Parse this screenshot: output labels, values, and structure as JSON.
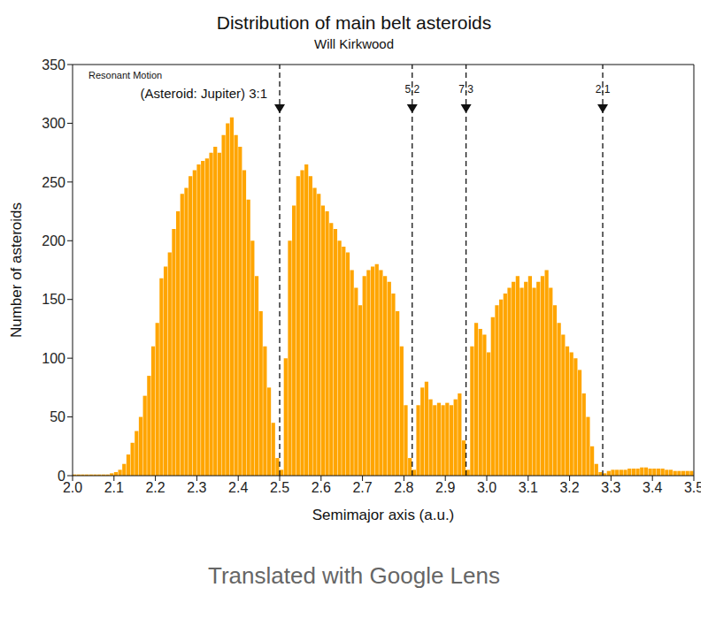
{
  "chart_data": {
    "type": "histogram",
    "title": "Distribution of main belt asteroids",
    "subtitle": "Will Kirkwood",
    "x_label": "Semimajor axis (a.u.)",
    "y_label": "Number of asteroids",
    "annotation": "Resonant Motion",
    "footer": "Translated with Google Lens",
    "color": "#ffa500",
    "xlim": [
      2.0,
      3.5
    ],
    "xticks": [
      {
        "value": 2.0,
        "label": "2.0"
      },
      2.1,
      2.2,
      2.3,
      2.4,
      2.5,
      2.6,
      2.7,
      2.8,
      2.9,
      {
        "value": 3.0,
        "label": "3.0"
      },
      3.1,
      3.2,
      3.3,
      3.4,
      3.5
    ],
    "ylim": [
      0,
      350
    ],
    "yticks": [
      0,
      50,
      100,
      150,
      200,
      250,
      300,
      350
    ],
    "grid": false,
    "resonances": [
      {
        "value": 2.5,
        "label": "(Asteroid: Jupiter) 3:1"
      },
      {
        "value": 2.82,
        "label": "5:2"
      },
      {
        "value": 2.95,
        "label": "7:3"
      },
      {
        "value": 3.28,
        "label": "2:1"
      }
    ],
    "bins": [
      2.0,
      2.01,
      2.02,
      2.03,
      2.04,
      2.05,
      2.06,
      2.07,
      2.08,
      2.09,
      2.1,
      2.11,
      2.12,
      2.13,
      2.14,
      2.15,
      2.16,
      2.17,
      2.18,
      2.19,
      2.2,
      2.21,
      2.22,
      2.23,
      2.24,
      2.25,
      2.26,
      2.27,
      2.28,
      2.29,
      2.3,
      2.31,
      2.32,
      2.33,
      2.34,
      2.35,
      2.36,
      2.37,
      2.38,
      2.39,
      2.4,
      2.41,
      2.42,
      2.43,
      2.44,
      2.45,
      2.46,
      2.47,
      2.48,
      2.49,
      2.5,
      2.51,
      2.52,
      2.53,
      2.54,
      2.55,
      2.56,
      2.57,
      2.58,
      2.59,
      2.6,
      2.61,
      2.62,
      2.63,
      2.64,
      2.65,
      2.66,
      2.67,
      2.68,
      2.69,
      2.7,
      2.71,
      2.72,
      2.73,
      2.74,
      2.75,
      2.76,
      2.77,
      2.78,
      2.79,
      2.8,
      2.81,
      2.82,
      2.83,
      2.84,
      2.85,
      2.86,
      2.87,
      2.88,
      2.89,
      2.9,
      2.91,
      2.92,
      2.93,
      2.94,
      2.95,
      2.96,
      2.97,
      2.98,
      2.99,
      3.0,
      3.01,
      3.02,
      3.03,
      3.04,
      3.05,
      3.06,
      3.07,
      3.08,
      3.09,
      3.1,
      3.11,
      3.12,
      3.13,
      3.14,
      3.15,
      3.16,
      3.17,
      3.18,
      3.19,
      3.2,
      3.21,
      3.22,
      3.23,
      3.24,
      3.25,
      3.26,
      3.27,
      3.28,
      3.29,
      3.3,
      3.31,
      3.32,
      3.33,
      3.34,
      3.35,
      3.36,
      3.37,
      3.38,
      3.39,
      3.4,
      3.41,
      3.42,
      3.43,
      3.44,
      3.45,
      3.46,
      3.47,
      3.48,
      3.49,
      3.5
    ],
    "counts": [
      1,
      1,
      1,
      1,
      1,
      1,
      1,
      1,
      1,
      2,
      3,
      5,
      10,
      18,
      28,
      38,
      50,
      68,
      85,
      110,
      130,
      168,
      178,
      190,
      210,
      225,
      240,
      245,
      255,
      260,
      265,
      268,
      270,
      275,
      280,
      275,
      290,
      300,
      305,
      290,
      280,
      260,
      235,
      200,
      170,
      140,
      110,
      75,
      45,
      15,
      5,
      100,
      200,
      230,
      255,
      260,
      265,
      255,
      245,
      240,
      230,
      225,
      215,
      210,
      200,
      195,
      190,
      175,
      160,
      145,
      170,
      175,
      178,
      180,
      175,
      170,
      165,
      155,
      140,
      110,
      60,
      15,
      5,
      60,
      75,
      80,
      65,
      60,
      62,
      60,
      62,
      60,
      65,
      70,
      30,
      5,
      110,
      130,
      125,
      120,
      105,
      135,
      145,
      150,
      155,
      160,
      165,
      170,
      160,
      165,
      170,
      160,
      165,
      170,
      175,
      160,
      145,
      130,
      120,
      110,
      105,
      100,
      90,
      70,
      50,
      25,
      10,
      3,
      2,
      4,
      5,
      5,
      5,
      5,
      6,
      6,
      6,
      7,
      7,
      6,
      6,
      6,
      6,
      5,
      5,
      4,
      4,
      4,
      4,
      4
    ]
  }
}
